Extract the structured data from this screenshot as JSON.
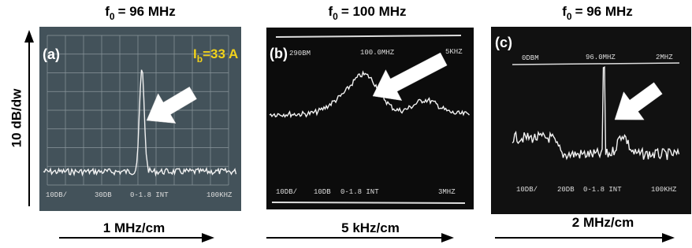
{
  "y_axis_label": "10 dB/dw",
  "panels": [
    {
      "label": "(a)",
      "title": {
        "symbol": "f",
        "subscript": "0",
        "text": "= 96 MHz"
      },
      "annotation": {
        "symbol": "I",
        "subscript": "b",
        "text": "=33 A"
      },
      "x_axis_label": "1 MHz/cm",
      "screen_texts": [
        "10DB/",
        "30DB",
        "0-1.8 INT",
        "100KHZ"
      ]
    },
    {
      "label": "(b)",
      "title": {
        "symbol": "f",
        "subscript": "0",
        "text": "= 100 MHz"
      },
      "x_axis_label": "5 kHz/cm",
      "screen_texts": [
        "290BM",
        "100.0MHZ",
        "5KHZ",
        "10DB/",
        "10DB",
        "0-1.8 INT",
        "3MHZ"
      ]
    },
    {
      "label": "(c)",
      "title": {
        "symbol": "f",
        "subscript": "0",
        "text": "= 96 MHz"
      },
      "x_axis_label": "2 MHz/cm",
      "screen_texts": [
        "0DBM",
        "96.0MHZ",
        "2MHZ",
        "10DB/",
        "20DB",
        "0-1.8 INT",
        "100KHZ"
      ]
    }
  ]
}
